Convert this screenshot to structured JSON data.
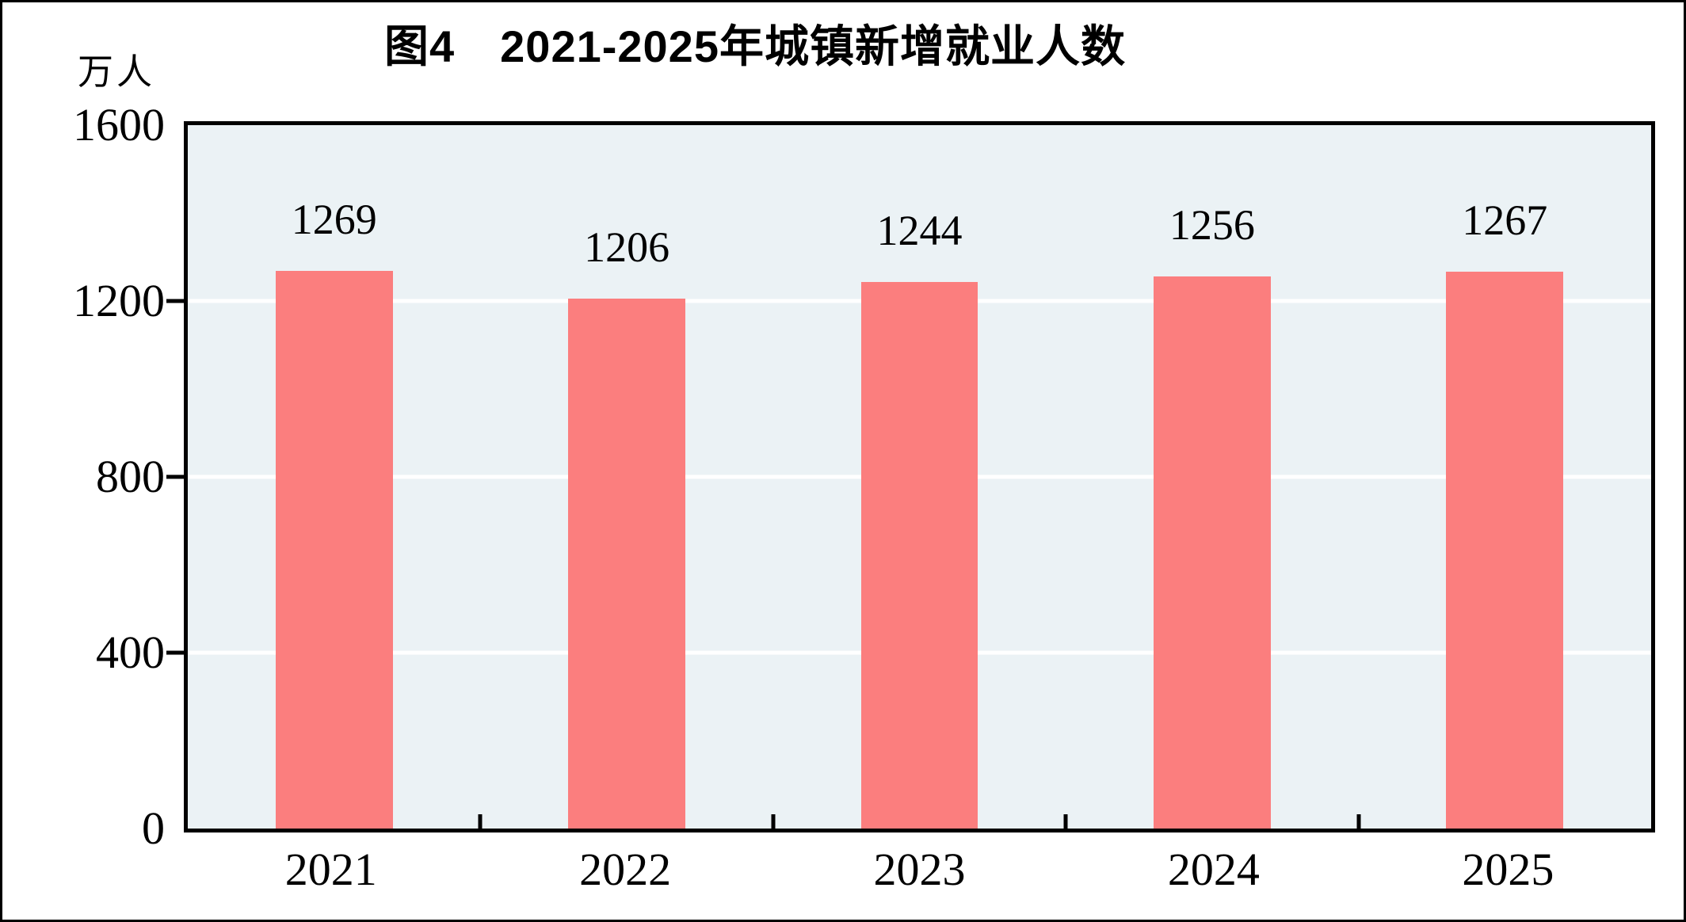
{
  "title": "图4　2021-2025年城镇新增就业人数",
  "y_axis": {
    "unit_label": "万人",
    "ticks": [
      "1600",
      "1200",
      "800",
      "400",
      "0"
    ]
  },
  "chart_data": {
    "type": "bar",
    "title": "图4　2021-2025年城镇新增就业人数",
    "categories": [
      "2021",
      "2022",
      "2023",
      "2024",
      "2025"
    ],
    "values": [
      1269,
      1206,
      1244,
      1256,
      1267
    ],
    "value_labels": [
      "1269",
      "1206",
      "1244",
      "1256",
      "1267"
    ],
    "xlabel": "",
    "ylabel": "万人",
    "ylim": [
      0,
      1600
    ],
    "y_tick_step": 400,
    "grid": "horizontal white gridlines at 400/800/1200",
    "legend_position": "none",
    "bar_color": "#FB7E7E",
    "plot_background": "#EBF2F5",
    "axis_color": "#000000",
    "text_color": "#000000"
  }
}
